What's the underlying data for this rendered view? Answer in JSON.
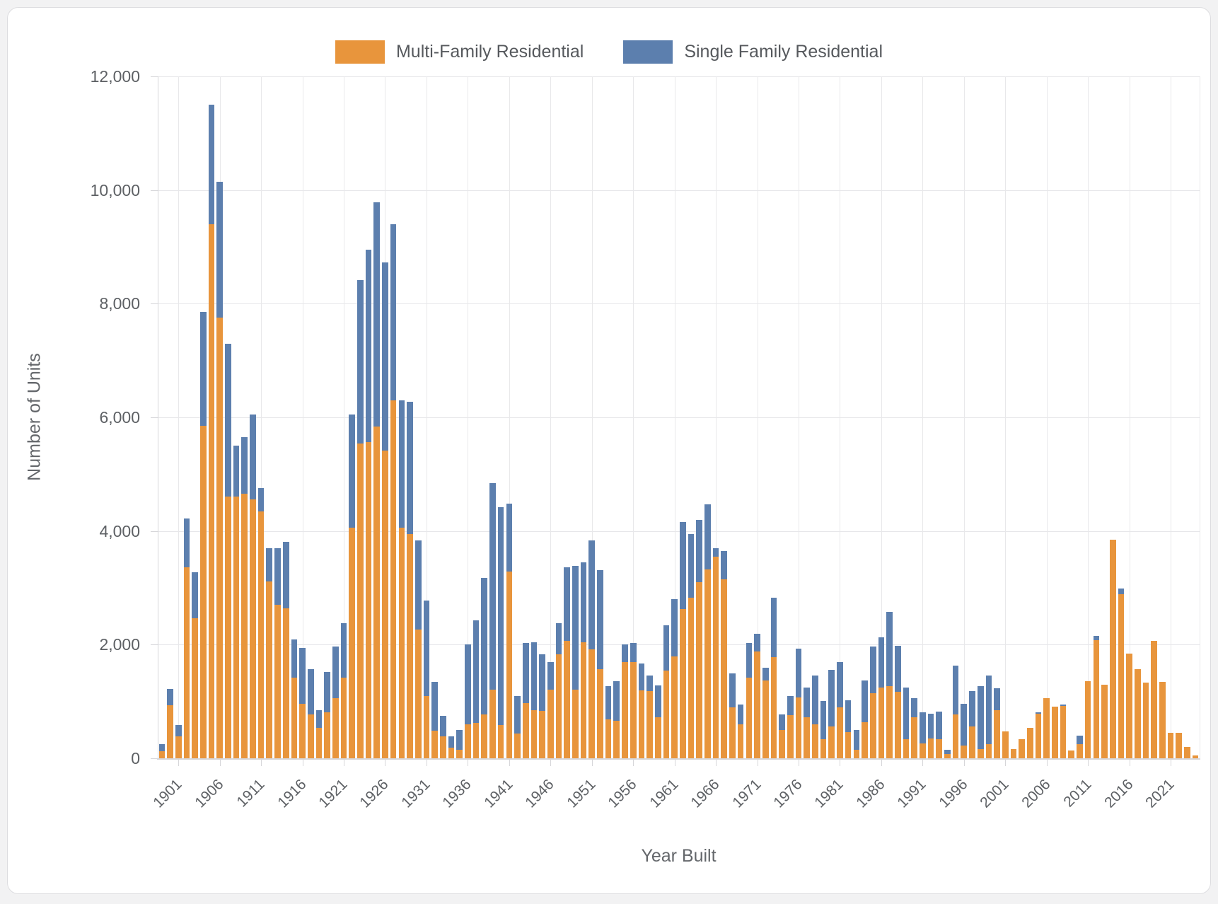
{
  "page": {
    "background": "#f2f2f3",
    "card_background": "#ffffff"
  },
  "legend": {
    "items": [
      {
        "label": "Multi-Family Residential",
        "color": "#e8953c"
      },
      {
        "label": "Single Family Residential",
        "color": "#5c7fae"
      }
    ]
  },
  "chart_data": {
    "type": "bar",
    "stacked": true,
    "title": "",
    "xlabel": "Year Built",
    "ylabel": "Number of Units",
    "ylim": [
      0,
      12000
    ],
    "grid": true,
    "legend_position": "top",
    "yticks": [
      0,
      2000,
      4000,
      6000,
      8000,
      10000,
      12000
    ],
    "ytick_labels": [
      "0",
      "2,000",
      "4,000",
      "6,000",
      "8,000",
      "10,000",
      "12,000"
    ],
    "xticks": [
      1901,
      1906,
      1911,
      1916,
      1921,
      1926,
      1931,
      1936,
      1941,
      1946,
      1951,
      1956,
      1961,
      1966,
      1971,
      1976,
      1981,
      1986,
      1991,
      1996,
      2001,
      2006,
      2011,
      2016,
      2021
    ],
    "years": [
      1899,
      1900,
      1901,
      1902,
      1903,
      1904,
      1905,
      1906,
      1907,
      1908,
      1909,
      1910,
      1911,
      1912,
      1913,
      1914,
      1915,
      1916,
      1917,
      1918,
      1919,
      1920,
      1921,
      1922,
      1923,
      1924,
      1925,
      1926,
      1927,
      1928,
      1929,
      1930,
      1931,
      1932,
      1933,
      1934,
      1935,
      1936,
      1937,
      1938,
      1939,
      1940,
      1941,
      1942,
      1943,
      1944,
      1945,
      1946,
      1947,
      1948,
      1949,
      1950,
      1951,
      1952,
      1953,
      1954,
      1955,
      1956,
      1957,
      1958,
      1959,
      1960,
      1961,
      1962,
      1963,
      1964,
      1965,
      1966,
      1967,
      1968,
      1969,
      1970,
      1971,
      1972,
      1973,
      1974,
      1975,
      1976,
      1977,
      1978,
      1979,
      1980,
      1981,
      1982,
      1983,
      1984,
      1985,
      1986,
      1987,
      1988,
      1989,
      1990,
      1991,
      1992,
      1993,
      1994,
      1995,
      1996,
      1997,
      1998,
      1999,
      2000,
      2001,
      2002,
      2003,
      2004,
      2005,
      2006,
      2007,
      2008,
      2009,
      2010,
      2011,
      2012,
      2013,
      2014,
      2015,
      2016,
      2017,
      2018,
      2019,
      2020,
      2021,
      2022,
      2023,
      2024
    ],
    "series": [
      {
        "name": "Multi-Family Residential",
        "color": "#e8953c",
        "values": [
          130,
          930,
          390,
          3360,
          2460,
          5850,
          9400,
          7760,
          4600,
          4600,
          4650,
          4550,
          4350,
          3115,
          2696,
          2633,
          1417,
          956,
          767,
          537,
          809,
          1061,
          1417,
          4060,
          5540,
          5570,
          5840,
          5420,
          6300,
          4060,
          3950,
          2260,
          1100,
          490,
          380,
          185,
          150,
          600,
          620,
          770,
          1210,
          580,
          3290,
          430,
          975,
          850,
          830,
          1210,
          1835,
          2065,
          1210,
          2045,
          1920,
          1565,
          685,
          660,
          1690,
          1690,
          1195,
          1185,
          720,
          1540,
          1790,
          2630,
          2830,
          3100,
          3325,
          3550,
          3150,
          900,
          600,
          1420,
          1880,
          1375,
          1775,
          495,
          755,
          1070,
          725,
          600,
          330,
          560,
          895,
          455,
          145,
          640,
          1145,
          1250,
          1270,
          1165,
          340,
          725,
          265,
          350,
          340,
          75,
          775,
          220,
          560,
          160,
          245,
          850,
          475,
          160,
          330,
          535,
          780,
          1055,
          905,
          920,
          140,
          250,
          1354,
          2075,
          1291,
          3849,
          2885,
          1837,
          1572,
          1333,
          2067,
          1350,
          450,
          450,
          200,
          50
        ]
      },
      {
        "name": "Single Family Residential",
        "color": "#5c7fae",
        "values": [
          120,
          290,
          190,
          860,
          810,
          2000,
          2100,
          2390,
          2700,
          900,
          1000,
          1500,
          400,
          580,
          1006,
          1174,
          671,
          985,
          797,
          314,
          713,
          901,
          964,
          1990,
          2880,
          3380,
          3940,
          3300,
          3100,
          2240,
          2320,
          1580,
          1680,
          850,
          365,
          205,
          350,
          1400,
          1805,
          2410,
          3630,
          3835,
          1190,
          665,
          1050,
          1195,
          1005,
          480,
          545,
          1300,
          2180,
          1405,
          1910,
          1740,
          585,
          695,
          315,
          335,
          475,
          275,
          560,
          800,
          1010,
          1530,
          1120,
          1100,
          1145,
          150,
          500,
          600,
          350,
          605,
          313,
          218,
          1055,
          281,
          335,
          863,
          516,
          859,
          676,
          991,
          795,
          564,
          350,
          735,
          817,
          880,
          1309,
          810,
          909,
          336,
          544,
          438,
          478,
          75,
          860,
          736,
          626,
          1110,
          1215,
          380,
          0,
          0,
          0,
          0,
          30,
          0,
          0,
          30,
          0,
          150,
          0,
          76,
          0,
          0,
          105,
          0,
          0,
          0,
          0,
          0,
          0,
          0,
          0,
          0
        ]
      }
    ]
  }
}
